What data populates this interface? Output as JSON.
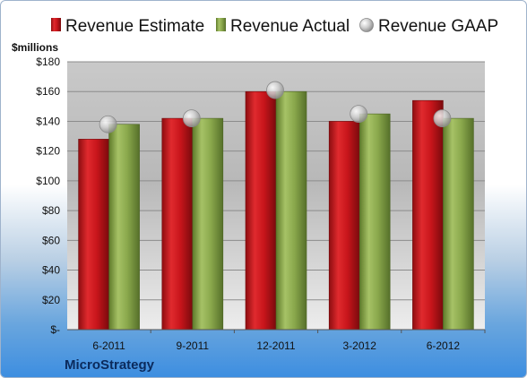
{
  "chart_data": {
    "type": "bar",
    "title": "",
    "ylabel": "$millions",
    "company": "MicroStrategy",
    "categories": [
      "6-2011",
      "9-2011",
      "12-2011",
      "3-2012",
      "6-2012"
    ],
    "series": [
      {
        "name": "Revenue Estimate",
        "kind": "bar",
        "color": "#c8151b",
        "values": [
          128,
          142,
          160,
          140,
          154
        ]
      },
      {
        "name": "Revenue Actual",
        "kind": "bar",
        "color": "#8aa84c",
        "values": [
          138,
          142,
          160,
          145,
          142
        ]
      },
      {
        "name": "Revenue GAAP",
        "kind": "marker",
        "color": "#a9a9a9",
        "values": [
          138,
          142,
          161,
          145,
          142
        ]
      }
    ],
    "ylim": [
      0,
      180
    ],
    "yticks": [
      0,
      20,
      40,
      60,
      80,
      100,
      120,
      140,
      160,
      180
    ],
    "ytick_labels": [
      "$-",
      "$20",
      "$40",
      "$60",
      "$80",
      "$100",
      "$120",
      "$140",
      "$160",
      "$180"
    ],
    "grid": true,
    "legend_position": "top"
  }
}
